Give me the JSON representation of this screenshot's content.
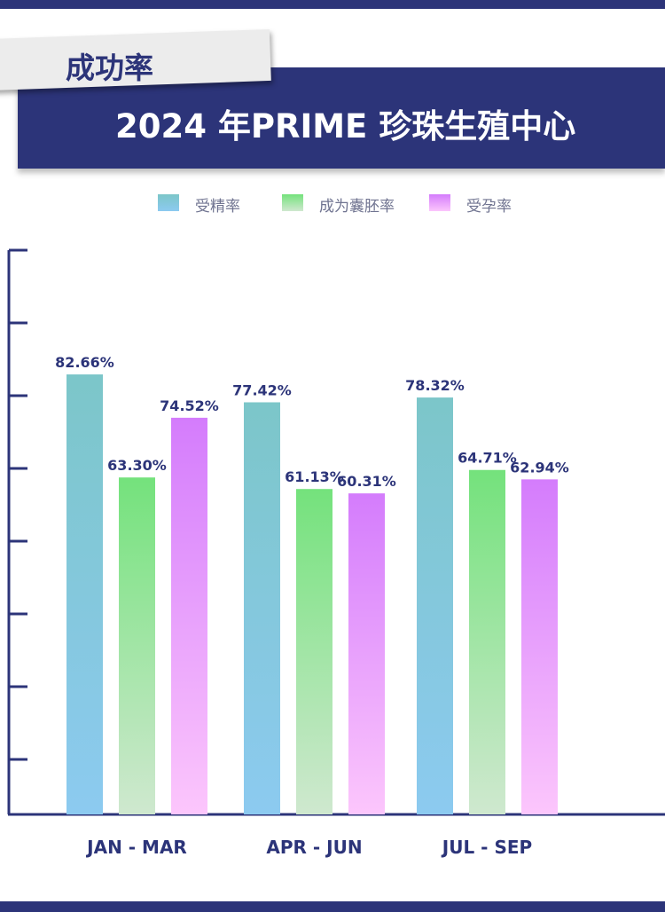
{
  "header": {
    "tag": "成功率",
    "title": "2024 年PRIME 珍珠生殖中心"
  },
  "colors": {
    "navy": "#2c3479",
    "fertilization_top": "#7cc6c9",
    "fertilization_bottom": "#8ccaf0",
    "blastocyst_top": "#74e27c",
    "blastocyst_bottom": "#cfe8cf",
    "pregnancy_top": "#d47cfc",
    "pregnancy_bottom": "#fcc6fc"
  },
  "chart_data": {
    "type": "bar",
    "categories": [
      "JAN - MAR",
      "APR - JUN",
      "JUL - SEP"
    ],
    "series": [
      {
        "name": "受精率",
        "values": [
          82.66,
          77.42,
          78.32
        ],
        "labels": [
          "82.66%",
          "77.42%",
          "78.32%"
        ]
      },
      {
        "name": "成为囊胚率",
        "values": [
          63.3,
          61.13,
          64.71
        ],
        "labels": [
          "63.30%",
          "61.13%",
          "64.71%"
        ]
      },
      {
        "name": "受孕率",
        "values": [
          74.52,
          60.31,
          62.94
        ],
        "labels": [
          "74.52%",
          "60.31%",
          "62.94%"
        ]
      }
    ],
    "ylim": [
      0,
      80
    ],
    "legend_position": "top-center",
    "grid": false
  }
}
